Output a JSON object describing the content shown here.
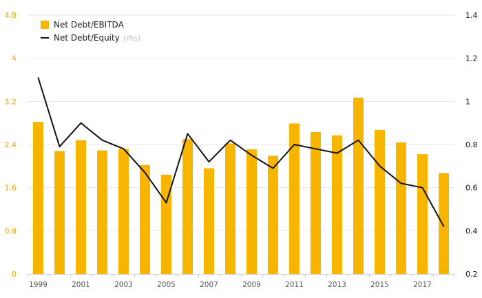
{
  "chart_data": {
    "type": "bar",
    "categories": [
      "1999",
      "2000",
      "2001",
      "2002",
      "2003",
      "2004",
      "2005",
      "2006",
      "2007",
      "2008",
      "2009",
      "2010",
      "2011",
      "2012",
      "2013",
      "2014",
      "2015",
      "2016",
      "2017",
      "2018"
    ],
    "x_tick_labels": [
      "1999",
      "2001",
      "2003",
      "2005",
      "2007",
      "2009",
      "2011",
      "2013",
      "2015",
      "2017"
    ],
    "series": [
      {
        "name": "Net Debt/EBITDA",
        "type": "bar",
        "axis": "left",
        "color": "#f7b500",
        "values": [
          2.82,
          2.28,
          2.48,
          2.29,
          2.32,
          2.02,
          1.84,
          2.5,
          1.96,
          2.42,
          2.31,
          2.19,
          2.79,
          2.63,
          2.57,
          3.27,
          2.67,
          2.44,
          2.22,
          1.87
        ]
      },
      {
        "name": "Net Debt/Equity",
        "type": "line",
        "axis": "right",
        "color": "#111111",
        "values": [
          1.11,
          0.79,
          0.9,
          0.82,
          0.78,
          0.67,
          0.53,
          0.85,
          0.72,
          0.82,
          0.75,
          0.69,
          0.8,
          0.78,
          0.76,
          0.82,
          0.7,
          0.62,
          0.6,
          0.42
        ]
      }
    ],
    "left_axis": {
      "min": 0,
      "max": 4.8,
      "ticks": [
        "0",
        "0.8",
        "1.6",
        "2.4",
        "3.2",
        "4",
        "4.8"
      ],
      "color": "#f0a500"
    },
    "right_axis": {
      "min": 0.2,
      "max": 1.4,
      "ticks": [
        "0.2",
        "0.4",
        "0.6",
        "0.8",
        "1",
        "1.2",
        "1.4"
      ],
      "color": "#111111"
    },
    "legend": {
      "position": "top-left",
      "items": [
        {
          "label": "Net Debt/EBITDA",
          "note": "",
          "marker": "square",
          "color": "#f7b500"
        },
        {
          "label": "Net Debt/Equity",
          "note": "(rhs)",
          "marker": "line",
          "color": "#111111"
        }
      ]
    },
    "grid": {
      "horizontal": true,
      "color": "#e6e6e6"
    },
    "title": "",
    "xlabel": "",
    "ylabel": ""
  }
}
